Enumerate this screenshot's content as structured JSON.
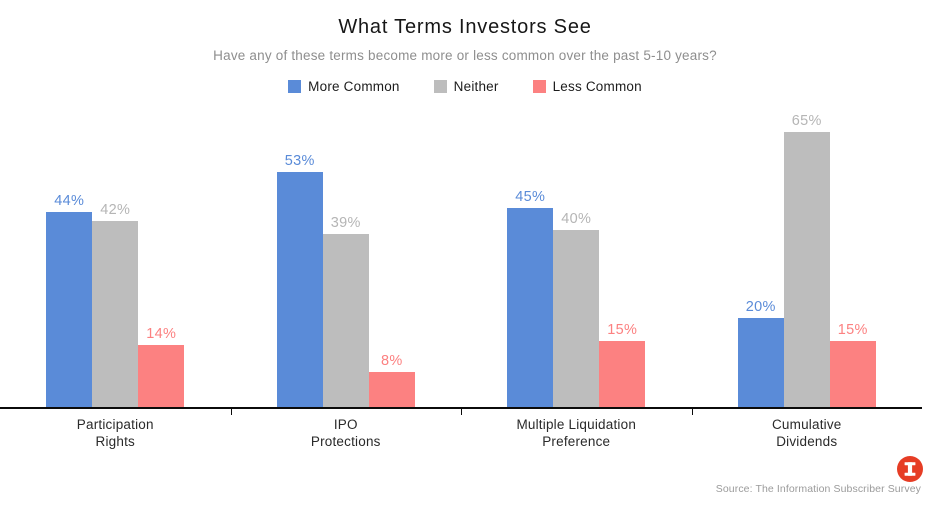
{
  "header": {
    "title": "What Terms Investors See",
    "subtitle": "Have any of these terms become more or less common over the past 5-10 years?"
  },
  "legend": [
    {
      "label": "More Common",
      "color": "#5a8bd8"
    },
    {
      "label": "Neither",
      "color": "#bdbdbd"
    },
    {
      "label": "Less Common",
      "color": "#fc8181"
    }
  ],
  "chart_data": {
    "type": "bar",
    "title": "What Terms Investors See",
    "subtitle": "Have any of these terms become more or less common over the past 5-10 years?",
    "categories": [
      "Participation\nRights",
      "IPO\nProtections",
      "Multiple Liquidation\nPreference",
      "Cumulative\nDividends"
    ],
    "series": [
      {
        "name": "More Common",
        "color": "#5a8bd8",
        "label_color": "#5a8bd8",
        "values": [
          44,
          53,
          45,
          20
        ]
      },
      {
        "name": "Neither",
        "color": "#bdbdbd",
        "label_color": "#b5b5b5",
        "values": [
          42,
          39,
          40,
          65
        ]
      },
      {
        "name": "Less Common",
        "color": "#fc8181",
        "label_color": "#fc8181",
        "values": [
          14,
          8,
          15,
          15
        ]
      }
    ],
    "value_suffix": "%",
    "ylim": [
      0,
      70
    ],
    "grid": false,
    "legend_position": "top",
    "data_labels": true
  },
  "footer": {
    "source": "Source: The Information Subscriber Survey",
    "logo_color": "#e63d25",
    "logo_glyph": "I"
  }
}
